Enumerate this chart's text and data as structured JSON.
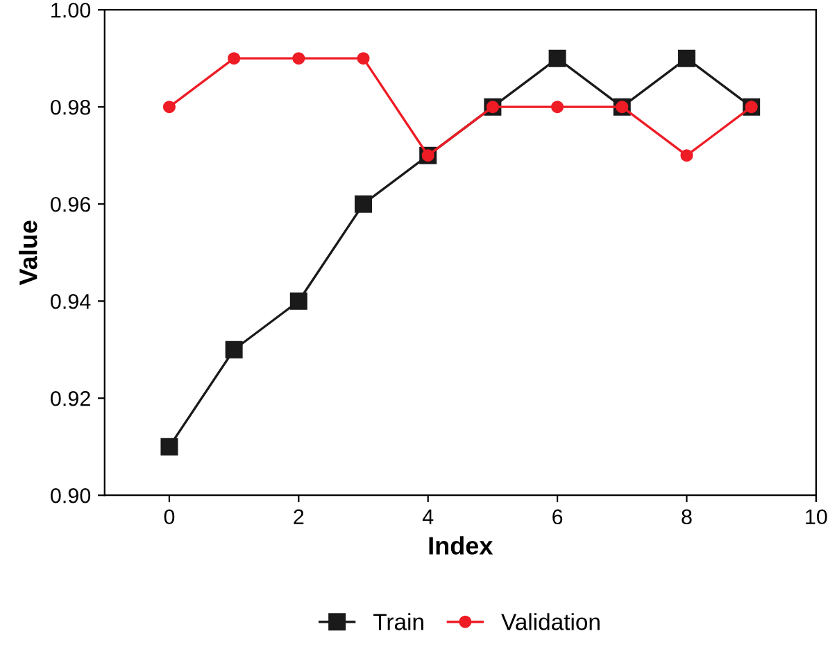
{
  "chart_data": {
    "type": "line",
    "xlabel": "Index",
    "ylabel": "Value",
    "x": [
      0,
      1,
      2,
      3,
      4,
      5,
      6,
      7,
      8,
      9
    ],
    "series": [
      {
        "name": "Train",
        "color": "#1a1a1a",
        "marker": "square",
        "values": [
          0.91,
          0.93,
          0.94,
          0.96,
          0.97,
          0.98,
          0.99,
          0.98,
          0.99,
          0.98
        ]
      },
      {
        "name": "Validation",
        "color": "#ee1c25",
        "marker": "circle",
        "values": [
          0.98,
          0.99,
          0.99,
          0.99,
          0.97,
          0.98,
          0.98,
          0.98,
          0.97,
          0.98
        ]
      }
    ],
    "xlim": [
      -1,
      10
    ],
    "xticks": [
      0,
      2,
      4,
      6,
      8,
      10
    ],
    "ylim": [
      0.9,
      1.0
    ],
    "yticks": [
      {
        "value": 0.9,
        "label": "0.90"
      },
      {
        "value": 0.92,
        "label": "0.92"
      },
      {
        "value": 0.94,
        "label": "0.94"
      },
      {
        "value": 0.96,
        "label": "0.96"
      },
      {
        "value": 0.98,
        "label": "0.98"
      },
      {
        "value": 1.0,
        "label": "1.00"
      }
    ],
    "grid": false,
    "legend": "bottom",
    "line_style": "solid"
  }
}
